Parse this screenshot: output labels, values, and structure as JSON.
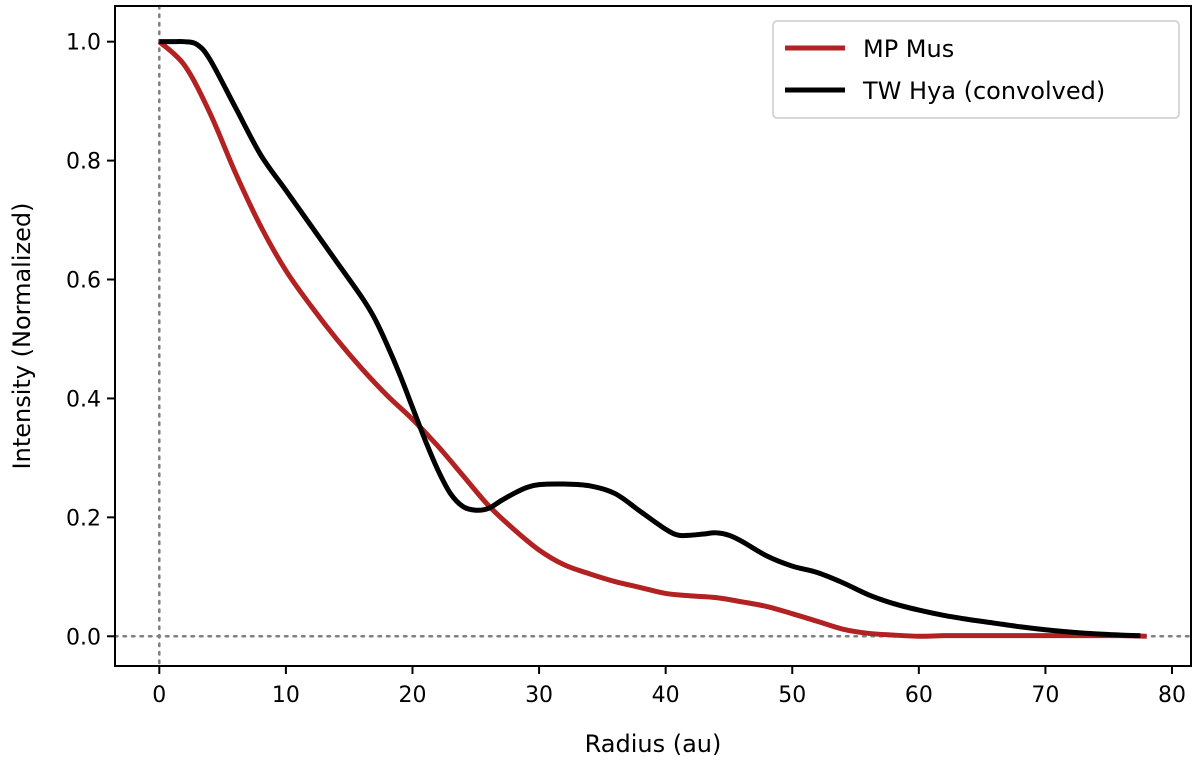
{
  "chart_data": {
    "type": "line",
    "xlabel": "Radius (au)",
    "ylabel": "Intensity (Normalized)",
    "xlim": [
      -3.5,
      81.5
    ],
    "ylim": [
      -0.05,
      1.06
    ],
    "xticks": [
      0,
      10,
      20,
      30,
      40,
      50,
      60,
      70,
      80
    ],
    "xtick_labels": [
      "0",
      "10",
      "20",
      "30",
      "40",
      "50",
      "60",
      "70",
      "80"
    ],
    "yticks": [
      0.0,
      0.2,
      0.4,
      0.6,
      0.8,
      1.0
    ],
    "ytick_labels": [
      "0.0",
      "0.2",
      "0.4",
      "0.6",
      "0.8",
      "1.0"
    ],
    "reference_lines": [
      {
        "orientation": "vertical",
        "value": 0,
        "style": "dotted",
        "color": "#808080"
      },
      {
        "orientation": "horizontal",
        "value": 0,
        "style": "dotted",
        "color": "#808080"
      }
    ],
    "legend_position": "top-right",
    "series": [
      {
        "name": "MP Mus",
        "color": "#b22222",
        "x": [
          0,
          2,
          4,
          6,
          8,
          10,
          12,
          14,
          16,
          18,
          20,
          22,
          24,
          26,
          28,
          30,
          32,
          34,
          36,
          38,
          40,
          42,
          44,
          46,
          48,
          50,
          52,
          54,
          56,
          58,
          60,
          62,
          64,
          66,
          68,
          70,
          72,
          74,
          76,
          78
        ],
        "values": [
          1.0,
          0.96,
          0.88,
          0.78,
          0.69,
          0.615,
          0.555,
          0.5,
          0.45,
          0.405,
          0.365,
          0.32,
          0.27,
          0.22,
          0.18,
          0.145,
          0.12,
          0.105,
          0.092,
          0.082,
          0.072,
          0.068,
          0.065,
          0.058,
          0.05,
          0.038,
          0.025,
          0.012,
          0.005,
          0.002,
          0.0,
          0.001,
          0.001,
          0.001,
          0.001,
          0.001,
          0.001,
          0.001,
          0.001,
          0.0
        ]
      },
      {
        "name": "TW Hya (convolved)",
        "color": "#000000",
        "x": [
          0,
          1,
          2,
          3,
          4,
          6,
          8,
          10,
          12,
          14,
          16,
          17,
          18,
          19,
          20,
          21,
          22,
          23,
          24,
          25,
          26,
          27,
          28,
          29,
          30,
          32,
          34,
          36,
          38,
          40,
          41,
          42,
          43,
          44,
          45,
          46,
          48,
          50,
          52,
          54,
          56,
          58,
          60,
          62,
          64,
          66,
          68,
          70,
          72,
          74,
          76,
          77.5
        ],
        "values": [
          1.0,
          1.0,
          1.0,
          0.995,
          0.97,
          0.89,
          0.81,
          0.75,
          0.69,
          0.63,
          0.57,
          0.535,
          0.49,
          0.44,
          0.385,
          0.33,
          0.28,
          0.24,
          0.218,
          0.212,
          0.215,
          0.228,
          0.24,
          0.25,
          0.255,
          0.256,
          0.253,
          0.24,
          0.21,
          0.18,
          0.17,
          0.17,
          0.172,
          0.174,
          0.17,
          0.16,
          0.135,
          0.118,
          0.107,
          0.09,
          0.07,
          0.055,
          0.044,
          0.035,
          0.028,
          0.022,
          0.016,
          0.011,
          0.007,
          0.004,
          0.002,
          0.001
        ]
      }
    ]
  }
}
